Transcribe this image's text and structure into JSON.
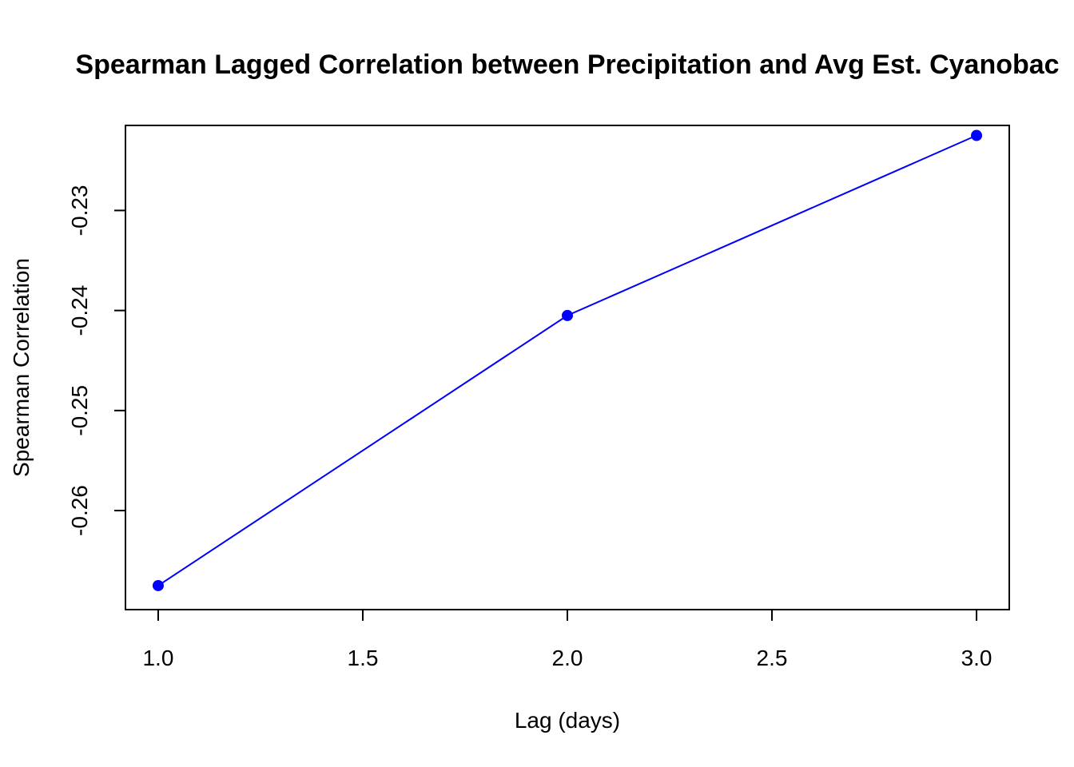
{
  "chart_data": {
    "type": "line",
    "title": "Spearman Lagged Correlation between Precipitation and Avg Est. Cyanobac",
    "xlabel": "Lag (days)",
    "ylabel": "Spearman Correlation",
    "x": [
      1,
      2,
      3
    ],
    "y": [
      -0.2675,
      -0.2405,
      -0.2225
    ],
    "xlim": [
      0.92,
      3.08
    ],
    "ylim": [
      -0.2699,
      -0.2215
    ],
    "xticks": [
      1.0,
      1.5,
      2.0,
      2.5,
      3.0
    ],
    "xtick_labels": [
      "1.0",
      "1.5",
      "2.0",
      "2.5",
      "3.0"
    ],
    "yticks": [
      -0.26,
      -0.25,
      -0.24,
      -0.23
    ],
    "ytick_labels": [
      "-0.26",
      "-0.25",
      "-0.24",
      "-0.23"
    ],
    "grid": false,
    "series_color": "#0000ff",
    "marker": "filled-circle"
  }
}
